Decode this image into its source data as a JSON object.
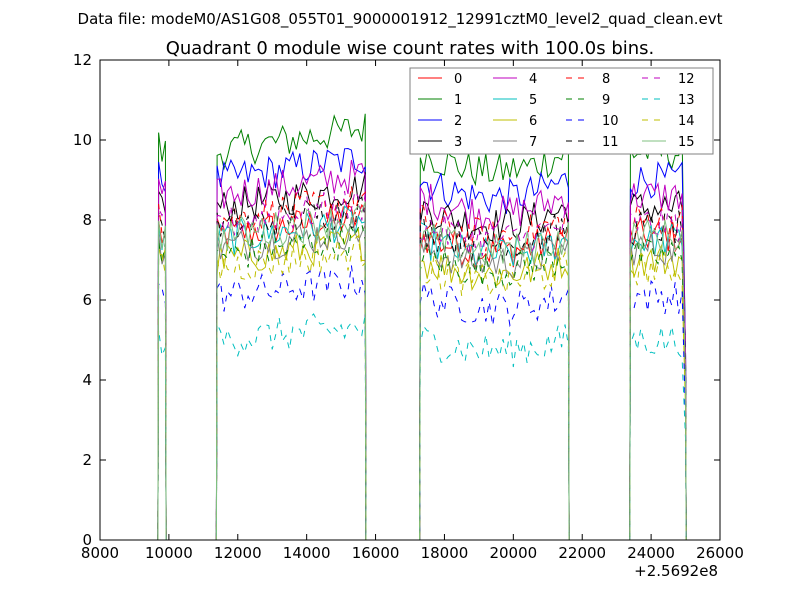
{
  "chart_data": {
    "type": "line",
    "suptitle": "Data file: modeM0/AS1G08_055T01_9000001912_12991cztM0_level2_quad_clean.evt",
    "title": "Quadrant 0 module wise count rates with 100.0s bins.",
    "xlabel": "",
    "ylabel": "",
    "x_offset_label": "+2.5692e8",
    "xlim": [
      8000,
      26000
    ],
    "ylim": [
      0,
      12
    ],
    "x_ticks": [
      8000,
      10000,
      12000,
      14000,
      16000,
      18000,
      20000,
      22000,
      24000,
      26000
    ],
    "y_ticks": [
      0,
      2,
      4,
      6,
      8,
      10,
      12
    ],
    "x_tick_labels": [
      "8000",
      "10000",
      "12000",
      "14000",
      "16000",
      "18000",
      "20000",
      "22000",
      "24000",
      "26000"
    ],
    "y_tick_labels": [
      "0",
      "2",
      "4",
      "6",
      "8",
      "10",
      "12"
    ],
    "grid": false,
    "legend_position": "top-right",
    "bin_size": 100,
    "segments": [
      {
        "start": 9700,
        "end": 9900
      },
      {
        "start": 11400,
        "end": 15700
      },
      {
        "start": 17300,
        "end": 21600
      },
      {
        "start": 23400,
        "end": 25000
      }
    ],
    "series": [
      {
        "name": "0",
        "color": "#ff0000",
        "dash": "solid",
        "mean": 7.6
      },
      {
        "name": "1",
        "color": "#008000",
        "dash": "solid",
        "mean": 9.7
      },
      {
        "name": "2",
        "color": "#0000ff",
        "dash": "solid",
        "mean": 9.0
      },
      {
        "name": "3",
        "color": "#000000",
        "dash": "solid",
        "mean": 8.3
      },
      {
        "name": "4",
        "color": "#bf00bf",
        "dash": "solid",
        "mean": 8.6
      },
      {
        "name": "5",
        "color": "#00bfbf",
        "dash": "solid",
        "mean": 7.5
      },
      {
        "name": "6",
        "color": "#bfbf00",
        "dash": "solid",
        "mean": 7.0
      },
      {
        "name": "7",
        "color": "#808080",
        "dash": "solid",
        "mean": 7.3
      },
      {
        "name": "8",
        "color": "#ff0000",
        "dash": "dashed",
        "mean": 8.0
      },
      {
        "name": "9",
        "color": "#008000",
        "dash": "dashed",
        "mean": 7.1
      },
      {
        "name": "10",
        "color": "#0000ff",
        "dash": "dashed",
        "mean": 6.1
      },
      {
        "name": "11",
        "color": "#000000",
        "dash": "dashed",
        "mean": 7.8
      },
      {
        "name": "12",
        "color": "#bf00bf",
        "dash": "dashed",
        "mean": 7.9
      },
      {
        "name": "13",
        "color": "#00bfbf",
        "dash": "dashed",
        "mean": 5.0
      },
      {
        "name": "14",
        "color": "#bfbf00",
        "dash": "dashed",
        "mean": 6.8
      },
      {
        "name": "15",
        "color": "#80c080",
        "dash": "solid",
        "mean": 7.6
      }
    ]
  }
}
